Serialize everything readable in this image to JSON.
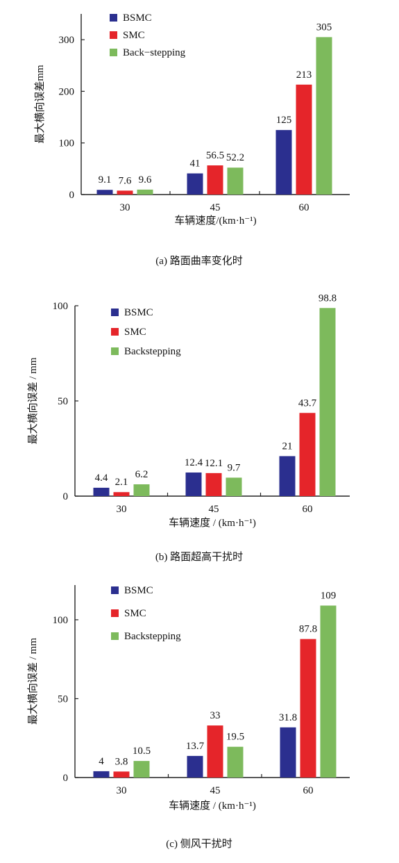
{
  "series_colors": [
    "#2b2f8f",
    "#e5252a",
    "#7dba5c"
  ],
  "chart_data": [
    {
      "type": "bar",
      "categories": [
        "30",
        "45",
        "60"
      ],
      "series": [
        {
          "name": "BSMC",
          "values": [
            9.1,
            41,
            125
          ],
          "labels": [
            "9.1",
            "41",
            "125"
          ]
        },
        {
          "name": "SMC",
          "values": [
            7.6,
            56.5,
            213
          ],
          "labels": [
            "7.6",
            "56.5",
            "213"
          ]
        },
        {
          "name": "Back−stepping",
          "values": [
            9.6,
            52.2,
            305
          ],
          "labels": [
            "9.6",
            "52.2",
            "305"
          ]
        }
      ],
      "ylim": [
        0,
        350
      ],
      "yticks": [
        0,
        100,
        200,
        300
      ],
      "xlabel": "车辆速度/(km·h⁻¹)",
      "ylabel": "最大横向误差mm",
      "caption": "(a)   路面曲率变化时",
      "legend": "top-left",
      "grid": false
    },
    {
      "type": "bar",
      "categories": [
        "30",
        "45",
        "60"
      ],
      "series": [
        {
          "name": "BSMC",
          "values": [
            4.4,
            12.4,
            21
          ],
          "labels": [
            "4.4",
            "12.4",
            "21"
          ]
        },
        {
          "name": "SMC",
          "values": [
            2.1,
            12.1,
            43.7
          ],
          "labels": [
            "2.1",
            "12.1",
            "43.7"
          ]
        },
        {
          "name": "Backstepping",
          "values": [
            6.2,
            9.7,
            98.8
          ],
          "labels": [
            "6.2",
            "9.7",
            "98.8"
          ]
        }
      ],
      "ylim": [
        0,
        100
      ],
      "yticks": [
        0,
        50,
        100
      ],
      "xlabel": "车辆速度 / (km·h⁻¹)",
      "ylabel": "最大横向误差 / mm",
      "caption": "(b)   路面超高干扰时",
      "legend": "top-left",
      "grid": false
    },
    {
      "type": "bar",
      "categories": [
        "30",
        "45",
        "60"
      ],
      "series": [
        {
          "name": "BSMC",
          "values": [
            4,
            13.7,
            31.8
          ],
          "labels": [
            "4",
            "13.7",
            "31.8"
          ]
        },
        {
          "name": "SMC",
          "values": [
            3.8,
            33,
            87.8
          ],
          "labels": [
            "3.8",
            "33",
            "87.8"
          ]
        },
        {
          "name": "Backstepping",
          "values": [
            10.5,
            19.5,
            109
          ],
          "labels": [
            "10.5",
            "19.5",
            "109"
          ]
        }
      ],
      "ylim": [
        0,
        122
      ],
      "yticks": [
        0,
        50,
        100
      ],
      "xlabel": "车辆速度 / (km·h⁻¹)",
      "ylabel": "最大横向误差 / mm",
      "caption": "(c)   侧风干扰时",
      "legend": "top-left",
      "grid": false
    }
  ]
}
